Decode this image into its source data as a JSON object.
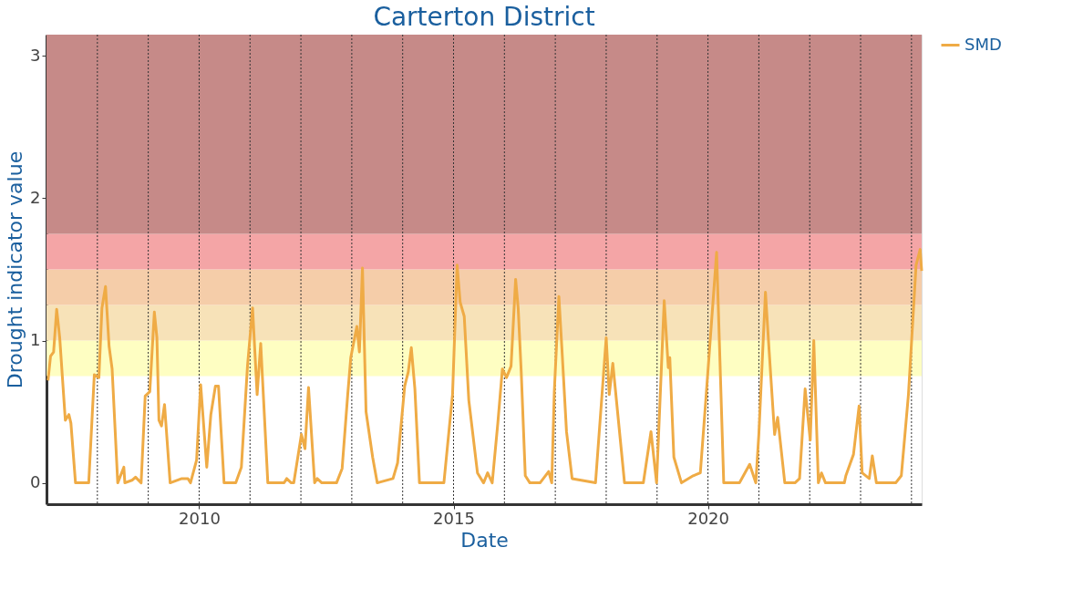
{
  "chart_data": {
    "type": "line",
    "title": "Carterton District",
    "xlabel": "Date",
    "ylabel": "Drought indicator value",
    "xlim": [
      2007.0,
      2024.2
    ],
    "xticks": [
      2010,
      2015,
      2020
    ],
    "ylim": [
      -0.15,
      3.15
    ],
    "yticks": [
      0,
      1,
      2,
      3
    ],
    "grid": false,
    "legend": "right",
    "line_style": "solid",
    "marker": "none",
    "bands": [
      {
        "axis": "y",
        "from": 0.75,
        "to": 1,
        "color": "#fefec2"
      },
      {
        "axis": "y",
        "from": 1,
        "to": 1.25,
        "color": "#f7e2b8"
      },
      {
        "axis": "y",
        "from": 1.25,
        "to": 1.5,
        "color": "#f5cda9"
      },
      {
        "axis": "y",
        "from": 1.5,
        "to": 1.75,
        "color": "#f4a5a6"
      },
      {
        "axis": "y",
        "from": 1.75,
        "to": 3.15,
        "color": "#c68a88"
      }
    ],
    "ref_lines": [
      {
        "axis": "x",
        "value": 2008,
        "line_style": "dotted",
        "color": "#333333"
      },
      {
        "axis": "x",
        "value": 2009,
        "line_style": "dotted",
        "color": "#333333"
      },
      {
        "axis": "x",
        "value": 2010,
        "line_style": "dotted",
        "color": "#333333"
      },
      {
        "axis": "x",
        "value": 2011,
        "line_style": "dotted",
        "color": "#333333"
      },
      {
        "axis": "x",
        "value": 2012,
        "line_style": "dotted",
        "color": "#333333"
      },
      {
        "axis": "x",
        "value": 2013,
        "line_style": "dotted",
        "color": "#333333"
      },
      {
        "axis": "x",
        "value": 2014,
        "line_style": "dotted",
        "color": "#333333"
      },
      {
        "axis": "x",
        "value": 2015,
        "line_style": "dotted",
        "color": "#333333"
      },
      {
        "axis": "x",
        "value": 2016,
        "line_style": "dotted",
        "color": "#333333"
      },
      {
        "axis": "x",
        "value": 2017,
        "line_style": "dotted",
        "color": "#333333"
      },
      {
        "axis": "x",
        "value": 2018,
        "line_style": "dotted",
        "color": "#333333"
      },
      {
        "axis": "x",
        "value": 2019,
        "line_style": "dotted",
        "color": "#333333"
      },
      {
        "axis": "x",
        "value": 2020,
        "line_style": "dotted",
        "color": "#333333"
      },
      {
        "axis": "x",
        "value": 2021,
        "line_style": "dotted",
        "color": "#333333"
      },
      {
        "axis": "x",
        "value": 2022,
        "line_style": "dotted",
        "color": "#333333"
      },
      {
        "axis": "x",
        "value": 2023,
        "line_style": "dotted",
        "color": "#333333"
      },
      {
        "axis": "x",
        "value": 2024,
        "line_style": "dotted",
        "color": "#333333"
      }
    ],
    "series": [
      {
        "name": "SMD",
        "color": "#efab45",
        "x": [
          2007.03,
          2007.08,
          2007.14,
          2007.2,
          2007.26,
          2007.37,
          2007.44,
          2007.48,
          2007.57,
          2007.83,
          2007.94,
          2008.03,
          2008.09,
          2008.16,
          2008.23,
          2008.29,
          2008.4,
          2008.52,
          2008.54,
          2008.69,
          2008.75,
          2008.86,
          2008.94,
          2009.03,
          2009.12,
          2009.17,
          2009.21,
          2009.26,
          2009.32,
          2009.43,
          2009.66,
          2009.78,
          2009.83,
          2009.95,
          2010.03,
          2010.15,
          2010.23,
          2010.32,
          2010.38,
          2010.49,
          2010.72,
          2010.83,
          2010.95,
          2011.05,
          2011.14,
          2011.21,
          2011.35,
          2011.67,
          2011.72,
          2011.81,
          2011.86,
          2012.01,
          2012.08,
          2012.15,
          2012.27,
          2012.32,
          2012.41,
          2012.7,
          2012.81,
          2012.92,
          2012.98,
          2013.1,
          2013.15,
          2013.21,
          2013.28,
          2013.41,
          2013.5,
          2013.81,
          2013.9,
          2014.04,
          2014.11,
          2014.17,
          2014.24,
          2014.33,
          2014.81,
          2014.98,
          2015.07,
          2015.13,
          2015.21,
          2015.3,
          2015.47,
          2015.59,
          2015.67,
          2015.76,
          2015.87,
          2015.96,
          2016.04,
          2016.13,
          2016.22,
          2016.27,
          2016.33,
          2016.41,
          2016.5,
          2016.7,
          2016.87,
          2016.93,
          2016.98,
          2017.07,
          2017.13,
          2017.22,
          2017.33,
          2017.79,
          2018.0,
          2018.06,
          2018.13,
          2018.3,
          2018.36,
          2018.42,
          2018.73,
          2018.88,
          2018.99,
          2019.14,
          2019.22,
          2019.25,
          2019.33,
          2019.48,
          2019.71,
          2019.85,
          2019.97,
          2020.17,
          2020.31,
          2020.62,
          2020.82,
          2020.94,
          2021.0,
          2021.13,
          2021.2,
          2021.31,
          2021.37,
          2021.51,
          2021.71,
          2021.8,
          2021.91,
          2022.01,
          2022.08,
          2022.17,
          2022.23,
          2022.31,
          2022.68,
          2022.71,
          2022.86,
          2022.97,
          2023.03,
          2023.17,
          2023.23,
          2023.31,
          2023.69,
          2023.8,
          2023.94,
          2024.09,
          2024.17,
          2024.2
        ],
        "values": [
          0.72,
          0.89,
          0.92,
          1.22,
          1.02,
          0.44,
          0.48,
          0.42,
          0,
          0,
          0.76,
          0.74,
          1.23,
          1.38,
          0.96,
          0.8,
          0,
          0.11,
          0,
          0.02,
          0.04,
          0,
          0.61,
          0.64,
          1.2,
          1.02,
          0.44,
          0.4,
          0.55,
          0,
          0.03,
          0.03,
          0,
          0.16,
          0.69,
          0.11,
          0.48,
          0.68,
          0.68,
          0,
          0,
          0.11,
          0.82,
          1.23,
          0.62,
          0.98,
          0,
          0,
          0.03,
          0,
          0,
          0.34,
          0.24,
          0.67,
          0,
          0.03,
          0,
          0,
          0.1,
          0.62,
          0.88,
          1.1,
          0.92,
          1.51,
          0.5,
          0.18,
          0,
          0.03,
          0.14,
          0.68,
          0.78,
          0.95,
          0.66,
          0,
          0,
          0.62,
          1.53,
          1.27,
          1.17,
          0.58,
          0.07,
          0,
          0.07,
          0,
          0.42,
          0.8,
          0.74,
          0.82,
          1.43,
          1.23,
          0.78,
          0.05,
          0,
          0,
          0.08,
          0,
          0.64,
          1.31,
          0.94,
          0.36,
          0.03,
          0,
          1.02,
          0.62,
          0.84,
          0.22,
          0,
          0,
          0,
          0.36,
          0,
          1.28,
          0.81,
          0.88,
          0.18,
          0,
          0.05,
          0.07,
          0.64,
          1.62,
          0,
          0,
          0.13,
          0,
          0.34,
          1.34,
          0.94,
          0.34,
          0.46,
          0,
          0,
          0.03,
          0.66,
          0.3,
          1.0,
          0,
          0.07,
          0,
          0,
          0.05,
          0.2,
          0.54,
          0.07,
          0.03,
          0.19,
          0,
          0,
          0.05,
          0.62,
          1.53,
          1.64,
          1.49
        ]
      }
    ]
  }
}
